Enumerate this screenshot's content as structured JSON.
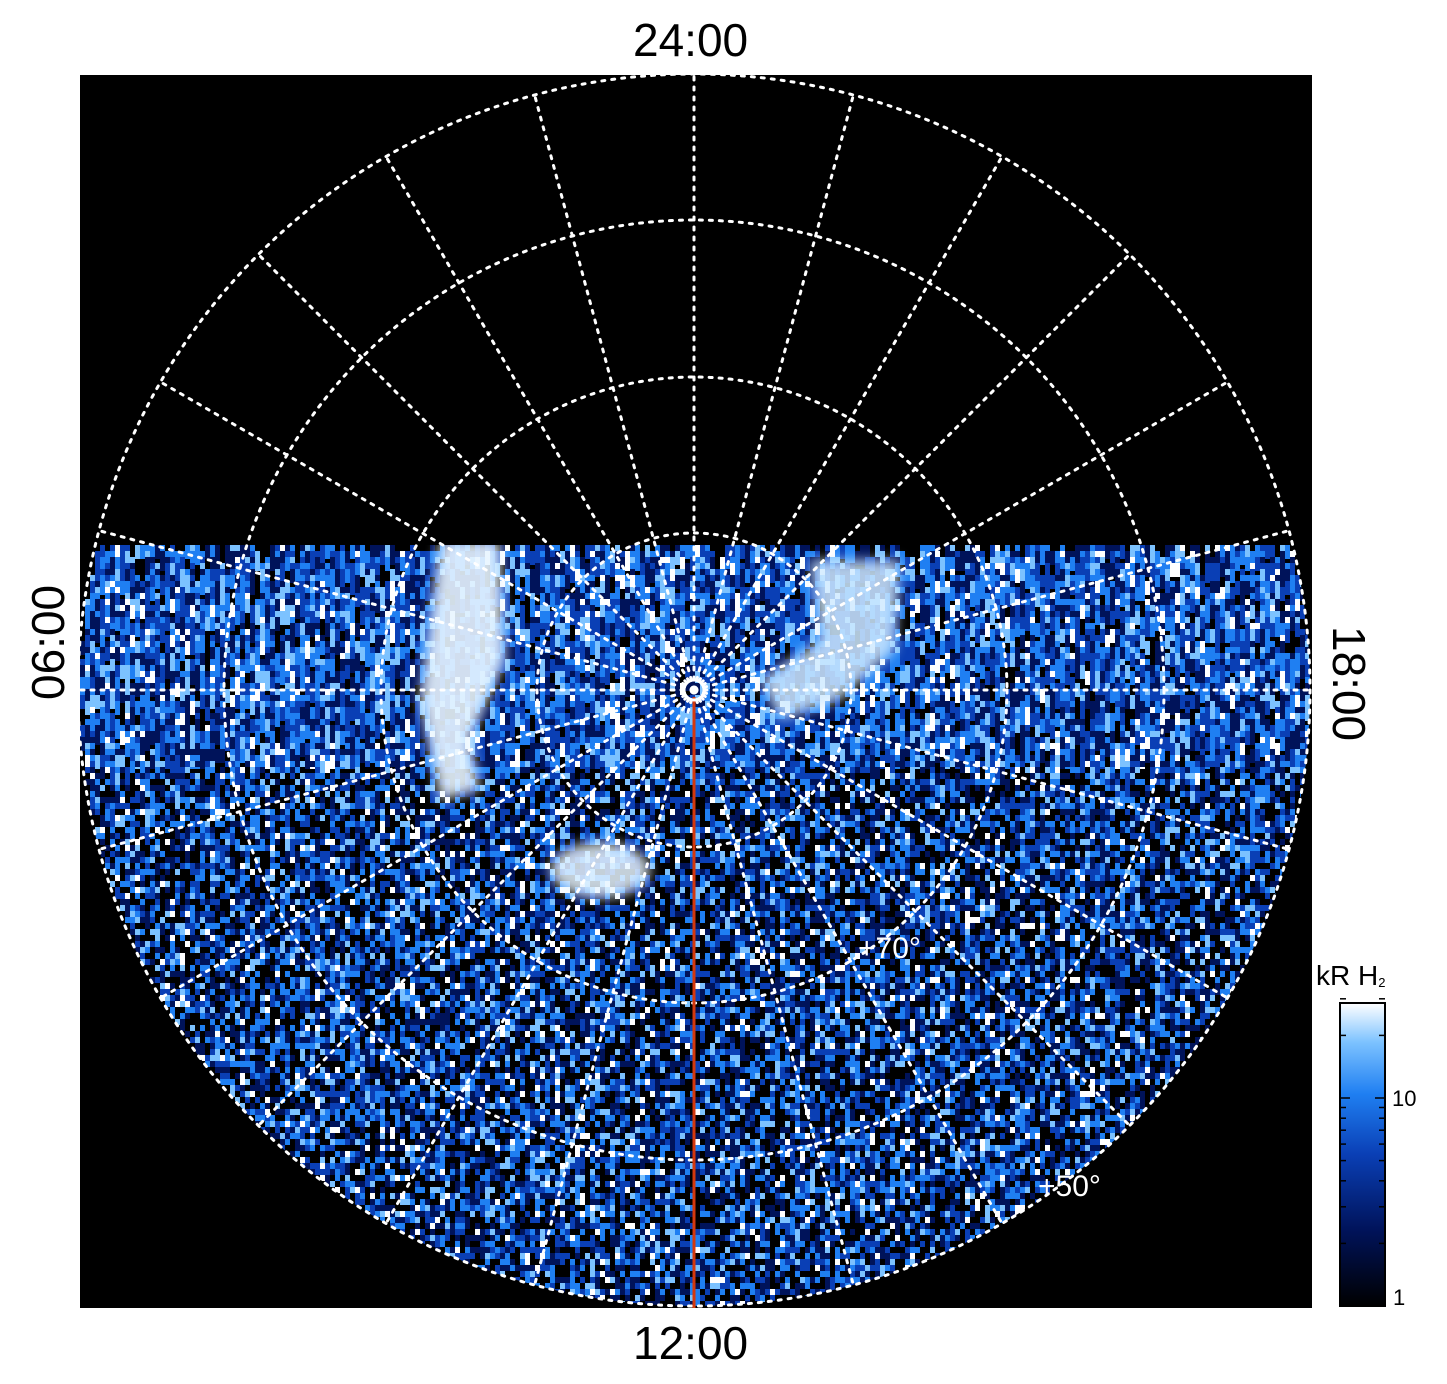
{
  "local_time_labels": {
    "top": "24:00",
    "bottom": "12:00",
    "left": "06:00",
    "right": "18:00"
  },
  "latitude_labels": {
    "lat70": "+70°",
    "lat50": "+50°"
  },
  "colorbar": {
    "title": "kR H",
    "title_subscript": "2",
    "tick_high": "10",
    "tick_low": "1",
    "scale": "log",
    "colors": [
      "#000000",
      "#00135a",
      "#0a3fb5",
      "#1f7ff2",
      "#7cc2ff",
      "#ffffff"
    ]
  },
  "colors": {
    "background": "#000000",
    "grid": "#ffffff",
    "noon_meridian": "#d4380d"
  }
}
